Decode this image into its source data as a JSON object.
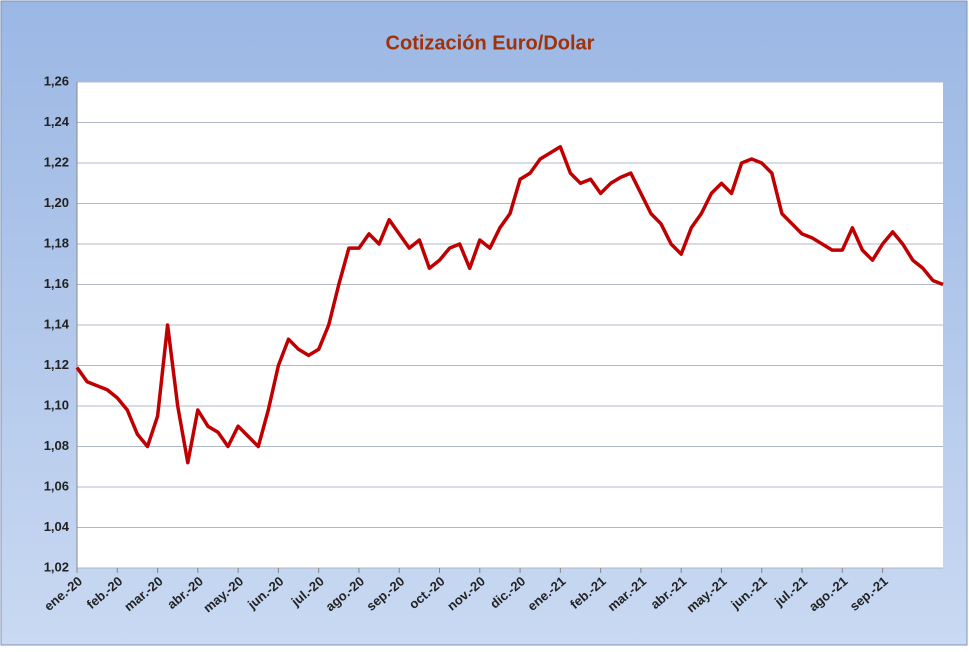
{
  "chart_data": {
    "type": "line",
    "title": "Cotización Euro/Dolar",
    "categories": [
      "ene.-20",
      null,
      null,
      null,
      "feb.-20",
      null,
      null,
      null,
      "mar.-20",
      null,
      null,
      null,
      "abr.-20",
      null,
      null,
      null,
      "may.-20",
      null,
      null,
      null,
      "jun.-20",
      null,
      null,
      null,
      "jul.-20",
      null,
      null,
      null,
      "ago.-20",
      null,
      null,
      null,
      "sep.-20",
      null,
      null,
      null,
      "oct.-20",
      null,
      null,
      null,
      "nov.-20",
      null,
      null,
      null,
      "dic.-20",
      null,
      null,
      null,
      "ene.-21",
      null,
      null,
      null,
      "feb.-21",
      null,
      null,
      null,
      "mar.-21",
      null,
      null,
      null,
      "abr.-21",
      null,
      null,
      null,
      "may.-21",
      null,
      null,
      null,
      "jun.-21",
      null,
      null,
      null,
      "jul.-21",
      null,
      null,
      null,
      "ago.-21",
      null,
      null,
      null,
      "sep.-21",
      null,
      null,
      null,
      null,
      null,
      null
    ],
    "series": [
      {
        "name": "Euro/Dolar",
        "color": "#c00000",
        "values": [
          1.119,
          1.112,
          1.11,
          1.108,
          1.104,
          1.098,
          1.086,
          1.08,
          1.095,
          1.14,
          1.1,
          1.072,
          1.098,
          1.09,
          1.087,
          1.08,
          1.09,
          1.085,
          1.08,
          1.098,
          1.12,
          1.133,
          1.128,
          1.125,
          1.128,
          1.14,
          1.16,
          1.178,
          1.178,
          1.185,
          1.18,
          1.192,
          1.185,
          1.178,
          1.182,
          1.168,
          1.172,
          1.178,
          1.18,
          1.168,
          1.182,
          1.178,
          1.188,
          1.195,
          1.212,
          1.215,
          1.222,
          1.225,
          1.228,
          1.215,
          1.21,
          1.212,
          1.205,
          1.21,
          1.213,
          1.215,
          1.205,
          1.195,
          1.19,
          1.18,
          1.175,
          1.188,
          1.195,
          1.205,
          1.21,
          1.205,
          1.22,
          1.222,
          1.22,
          1.215,
          1.195,
          1.19,
          1.185,
          1.183,
          1.18,
          1.177,
          1.177,
          1.188,
          1.177,
          1.172,
          1.18,
          1.186,
          1.18,
          1.172,
          1.168,
          1.162,
          1.16
        ]
      }
    ],
    "ylim": [
      1.02,
      1.26
    ],
    "yticks": [
      {
        "value": 1.02,
        "label": "1,02"
      },
      {
        "value": 1.04,
        "label": "1,04"
      },
      {
        "value": 1.06,
        "label": "1,06"
      },
      {
        "value": 1.08,
        "label": "1,08"
      },
      {
        "value": 1.1,
        "label": "1,10"
      },
      {
        "value": 1.12,
        "label": "1,12"
      },
      {
        "value": 1.14,
        "label": "1,14"
      },
      {
        "value": 1.16,
        "label": "1,16"
      },
      {
        "value": 1.18,
        "label": "1,18"
      },
      {
        "value": 1.2,
        "label": "1,20"
      },
      {
        "value": 1.22,
        "label": "1,22"
      },
      {
        "value": 1.24,
        "label": "1,24"
      },
      {
        "value": 1.26,
        "label": "1,26"
      }
    ],
    "grid": true
  }
}
